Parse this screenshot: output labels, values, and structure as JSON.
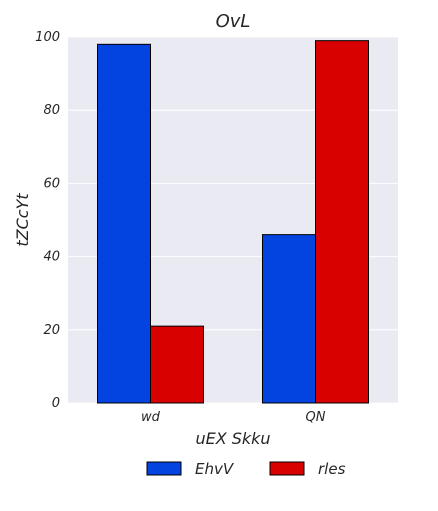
{
  "chart_data": {
    "type": "bar",
    "title": "OvL",
    "xlabel": "uEX Skku",
    "ylabel": "tZCcYt",
    "categories": [
      "wd",
      "QN"
    ],
    "series": [
      {
        "name": "EhvV",
        "values": [
          98,
          46
        ],
        "color": "#0343df"
      },
      {
        "name": "rles",
        "values": [
          21,
          99
        ],
        "color": "#d90000"
      }
    ],
    "ylim": [
      0,
      100
    ],
    "yticks": [
      0,
      20,
      40,
      60,
      80,
      100
    ],
    "grid": true,
    "legend_position": "bottom-center",
    "plot_background": "#eaeaf2"
  }
}
